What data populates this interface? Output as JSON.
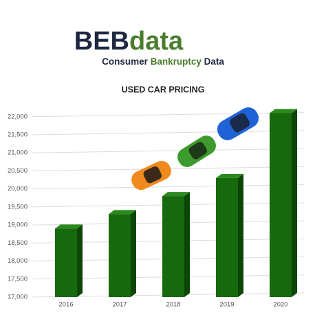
{
  "header": {
    "logo": [
      "BEB",
      "data"
    ],
    "tagline": [
      "Consumer ",
      "Bankruptcy",
      " Data"
    ]
  },
  "chart_data": {
    "type": "bar",
    "title": "USED CAR PRICING",
    "categories": [
      "2016",
      "2017",
      "2018",
      "2019",
      "2020"
    ],
    "values": [
      18900,
      19300,
      19800,
      20300,
      22100
    ],
    "color": "#17690d",
    "ylim": [
      17000,
      22300
    ],
    "yticks": [
      {
        "value": 17000,
        "label": "17,000"
      },
      {
        "value": 17500,
        "label": "17,500"
      },
      {
        "value": 18000,
        "label": "18,000"
      },
      {
        "value": 18500,
        "label": "18,500"
      },
      {
        "value": 19000,
        "label": "19,000"
      },
      {
        "value": 19500,
        "label": "19,500"
      },
      {
        "value": 20000,
        "label": "20,000"
      },
      {
        "value": 20500,
        "label": "20,500"
      },
      {
        "value": 21000,
        "label": "21,000"
      },
      {
        "value": 21500,
        "label": "21,500"
      },
      {
        "value": 22000,
        "label": "22,000"
      }
    ],
    "grid": true
  }
}
